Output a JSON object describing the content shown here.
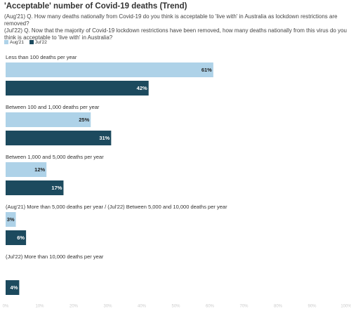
{
  "chart_data": {
    "type": "hbar",
    "title": "'Acceptable' number of Covid-19 deaths (Trend)",
    "subtitles": [
      "(Aug'21) Q. How many deaths nationally from Covid-19 do you think is acceptable to 'live with' in Australia as lockdown restrictions are removed?",
      "(Jul'22) Q. Now that the majority of Covid-19 lockdown restrictions have been removed, how many deaths nationally from this virus do you think is acceptable to 'live with' in Australia?"
    ],
    "categories": [
      "Less than 100 deaths per year",
      "Between 100 and 1,000 deaths per year",
      "Between 1,000 and 5,000 deaths per year",
      "(Aug'21) More than 5,000 deaths per year / (Jul'22) Between 5,000 and 10,000 deaths per year",
      "(Jul'22) More than 10,000 deaths per year"
    ],
    "series": [
      {
        "name": "Aug'21",
        "color": "#aed2e8",
        "values": [
          61,
          25,
          12,
          3,
          null
        ],
        "value_labels": [
          "61%",
          "25%",
          "12%",
          "3%",
          null
        ]
      },
      {
        "name": "Jul'22",
        "color": "#1c4a5e",
        "values": [
          42,
          31,
          17,
          6,
          4
        ],
        "value_labels": [
          "42%",
          "31%",
          "17%",
          "6%",
          "4%"
        ]
      }
    ],
    "xlim": [
      0,
      100
    ],
    "xticks": [
      {
        "value": 0,
        "label": "0%"
      },
      {
        "value": 10,
        "label": "10%"
      },
      {
        "value": 20,
        "label": "20%"
      },
      {
        "value": 30,
        "label": "30%"
      },
      {
        "value": 40,
        "label": "40%"
      },
      {
        "value": 50,
        "label": "50%"
      },
      {
        "value": 60,
        "label": "60%"
      },
      {
        "value": 70,
        "label": "70%"
      },
      {
        "value": 80,
        "label": "80%"
      },
      {
        "value": 90,
        "label": "90%"
      },
      {
        "value": 100,
        "label": "100%"
      }
    ],
    "legend": "top-left"
  }
}
